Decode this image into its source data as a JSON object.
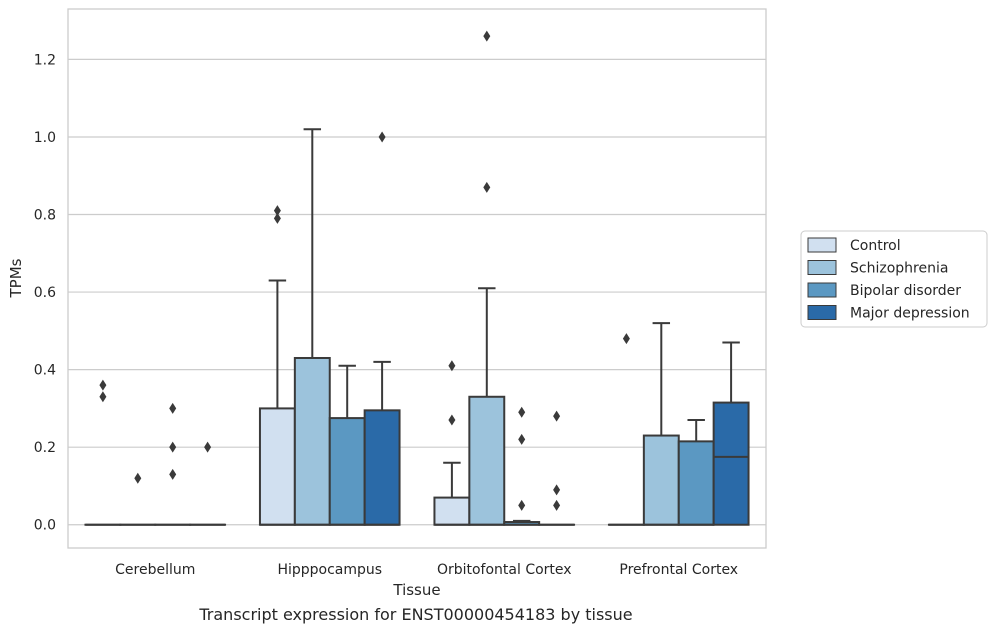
{
  "chart_data": {
    "type": "box",
    "caption": "Transcript expression for ENST00000454183 by tissue",
    "xlabel": "Tissue",
    "ylabel": "TPMs",
    "ylim": [
      -0.06,
      1.33
    ],
    "yticks": [
      "0.0",
      "0.2",
      "0.4",
      "0.6",
      "0.8",
      "1.0",
      "1.2"
    ],
    "ytick_values": [
      0.0,
      0.2,
      0.4,
      0.6,
      0.8,
      1.0,
      1.2
    ],
    "grid": "horizontal",
    "legend_position": "right",
    "categories": [
      "Cerebellum",
      "Hipppocampus",
      "Orbitofontal Cortex",
      "Prefrontal Cortex"
    ],
    "series": [
      {
        "name": "Control",
        "color": "#d1e0f0",
        "boxes": [
          {
            "whislo": 0.0,
            "q1": 0.0,
            "med": 0.0,
            "q3": 0.0,
            "whishi": 0.0,
            "fliers": [
              0.36,
              0.33
            ]
          },
          {
            "whislo": 0.0,
            "q1": 0.0,
            "med": 0.0,
            "q3": 0.3,
            "whishi": 0.63,
            "fliers": [
              0.81,
              0.79
            ]
          },
          {
            "whislo": 0.0,
            "q1": 0.0,
            "med": 0.0,
            "q3": 0.07,
            "whishi": 0.16,
            "fliers": [
              0.41,
              0.27
            ]
          },
          {
            "whislo": 0.0,
            "q1": 0.0,
            "med": 0.0,
            "q3": 0.0,
            "whishi": 0.0,
            "fliers": [
              0.48
            ]
          }
        ]
      },
      {
        "name": "Schizophrenia",
        "color": "#9cc3dc",
        "boxes": [
          {
            "whislo": 0.0,
            "q1": 0.0,
            "med": 0.0,
            "q3": 0.0,
            "whishi": 0.0,
            "fliers": [
              0.12
            ]
          },
          {
            "whislo": 0.0,
            "q1": 0.0,
            "med": 0.0,
            "q3": 0.43,
            "whishi": 1.02,
            "fliers": []
          },
          {
            "whislo": 0.0,
            "q1": 0.0,
            "med": 0.0,
            "q3": 0.33,
            "whishi": 0.61,
            "fliers": [
              1.26,
              0.87
            ]
          },
          {
            "whislo": 0.0,
            "q1": 0.0,
            "med": 0.0,
            "q3": 0.23,
            "whishi": 0.52,
            "fliers": []
          }
        ]
      },
      {
        "name": "Bipolar disorder",
        "color": "#5b98c2",
        "boxes": [
          {
            "whislo": 0.0,
            "q1": 0.0,
            "med": 0.0,
            "q3": 0.0,
            "whishi": 0.0,
            "fliers": [
              0.3,
              0.2,
              0.13
            ]
          },
          {
            "whislo": 0.0,
            "q1": 0.0,
            "med": 0.0,
            "q3": 0.275,
            "whishi": 0.41,
            "fliers": []
          },
          {
            "whislo": 0.0,
            "q1": 0.0,
            "med": 0.0,
            "q3": 0.007,
            "whishi": 0.01,
            "fliers": [
              0.29,
              0.22,
              0.05
            ]
          },
          {
            "whislo": 0.0,
            "q1": 0.0,
            "med": 0.0,
            "q3": 0.215,
            "whishi": 0.27,
            "fliers": []
          }
        ]
      },
      {
        "name": "Major depression",
        "color": "#2a6aa8",
        "boxes": [
          {
            "whislo": 0.0,
            "q1": 0.0,
            "med": 0.0,
            "q3": 0.0,
            "whishi": 0.0,
            "fliers": [
              0.2
            ]
          },
          {
            "whislo": 0.0,
            "q1": 0.0,
            "med": 0.0,
            "q3": 0.295,
            "whishi": 0.42,
            "fliers": [
              1.0
            ]
          },
          {
            "whislo": 0.0,
            "q1": 0.0,
            "med": 0.0,
            "q3": 0.0,
            "whishi": 0.0,
            "fliers": [
              0.28,
              0.09,
              0.05
            ]
          },
          {
            "whislo": 0.0,
            "q1": 0.0,
            "med": 0.175,
            "q3": 0.315,
            "whishi": 0.47,
            "fliers": []
          }
        ]
      }
    ]
  }
}
